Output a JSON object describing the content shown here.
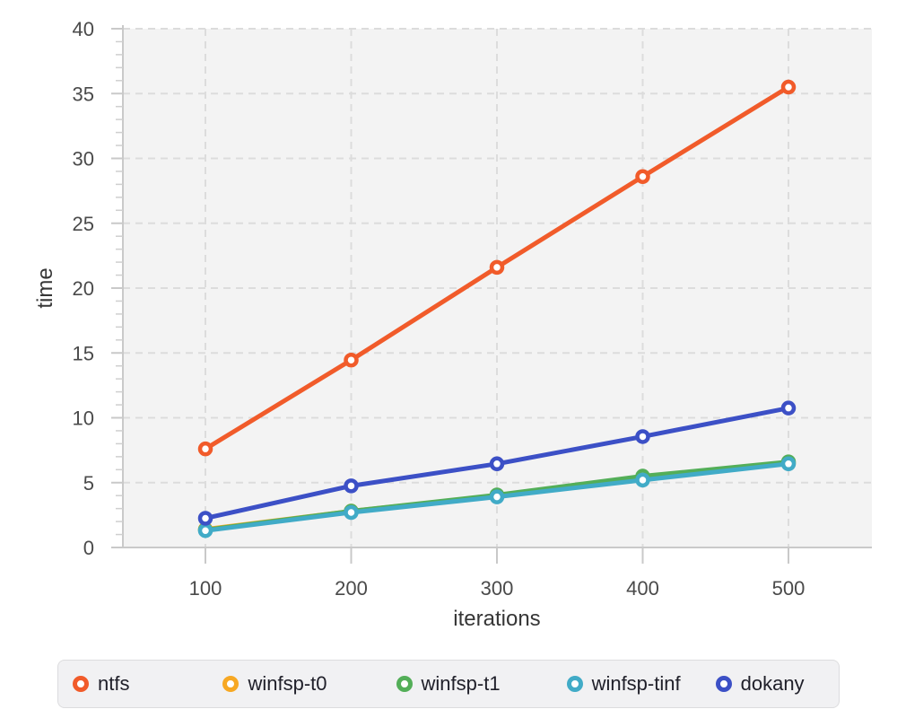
{
  "chart_data": {
    "type": "line",
    "x": [
      100,
      200,
      300,
      400,
      500
    ],
    "series": [
      {
        "name": "ntfs",
        "color": "#f15b2a",
        "values": [
          7.6,
          14.45,
          21.6,
          28.6,
          35.5
        ]
      },
      {
        "name": "winfsp-t0",
        "color": "#f7a823",
        "values": [
          1.4,
          2.8,
          4.0,
          5.35,
          6.5
        ]
      },
      {
        "name": "winfsp-t1",
        "color": "#53ae58",
        "values": [
          1.35,
          2.8,
          4.05,
          5.5,
          6.6
        ]
      },
      {
        "name": "winfsp-tinf",
        "color": "#41abc7",
        "values": [
          1.3,
          2.7,
          3.9,
          5.2,
          6.45
        ]
      },
      {
        "name": "dokany",
        "color": "#3c50c6",
        "values": [
          2.25,
          4.75,
          6.45,
          8.55,
          10.75
        ]
      }
    ],
    "title": "",
    "xlabel": "iterations",
    "ylabel": "time",
    "xticks": [
      100,
      200,
      300,
      400,
      500
    ],
    "yticks": [
      0,
      5,
      10,
      15,
      20,
      25,
      30,
      35,
      40
    ],
    "y_minor_tick_step": 1,
    "ylim": [
      0,
      40
    ],
    "xlim": [
      43,
      557
    ],
    "grid": true,
    "grid_style": "dashed",
    "marker": "open-circle",
    "legend_position": "bottom"
  },
  "style_colors": {
    "plot_background": "#f3f3f3",
    "gridline": "#dcdcdc",
    "axis_line": "#c9c9c9",
    "minor_tick": "#cfcfcf",
    "tick_label": "#4a4a4a",
    "axis_title": "#363636",
    "legend_background": "#f1f1f3",
    "legend_border": "#dcdcde",
    "legend_text": "#20202a"
  }
}
